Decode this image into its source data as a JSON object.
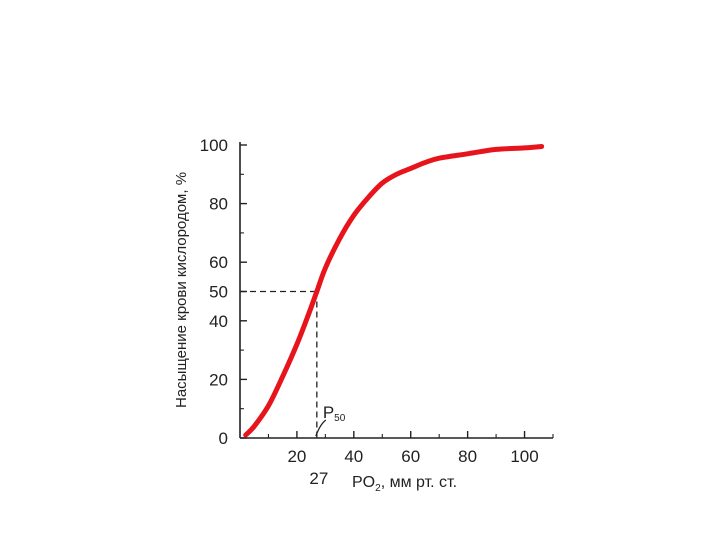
{
  "chart_data": {
    "type": "line",
    "ylabel": "Насыщение крови кислородом, %",
    "xlabel_main": "PO",
    "xlabel_sub": "2",
    "xlabel_rest": ", мм рт. ст.",
    "xlim": [
      0,
      110
    ],
    "ylim": [
      0,
      100
    ],
    "x_ticks": [
      20,
      40,
      60,
      80,
      100
    ],
    "y_ticks": [
      0,
      20,
      40,
      50,
      60,
      80,
      100
    ],
    "grid": false,
    "series": [
      {
        "color": "#e8141c",
        "x": [
          2,
          5,
          10,
          15,
          20,
          24,
          27,
          30,
          35,
          40,
          45,
          50,
          55,
          60,
          65,
          70,
          80,
          90,
          100,
          106
        ],
        "y": [
          1,
          4,
          11,
          21,
          32,
          42,
          50,
          58,
          68,
          76,
          82,
          87,
          90,
          92,
          94,
          95.5,
          97,
          98.5,
          99,
          99.5
        ]
      }
    ],
    "annotations": [
      {
        "text": "27",
        "x": 27
      },
      {
        "text_main": "P",
        "text_sub": "50",
        "x": 27,
        "y": 50
      }
    ]
  }
}
